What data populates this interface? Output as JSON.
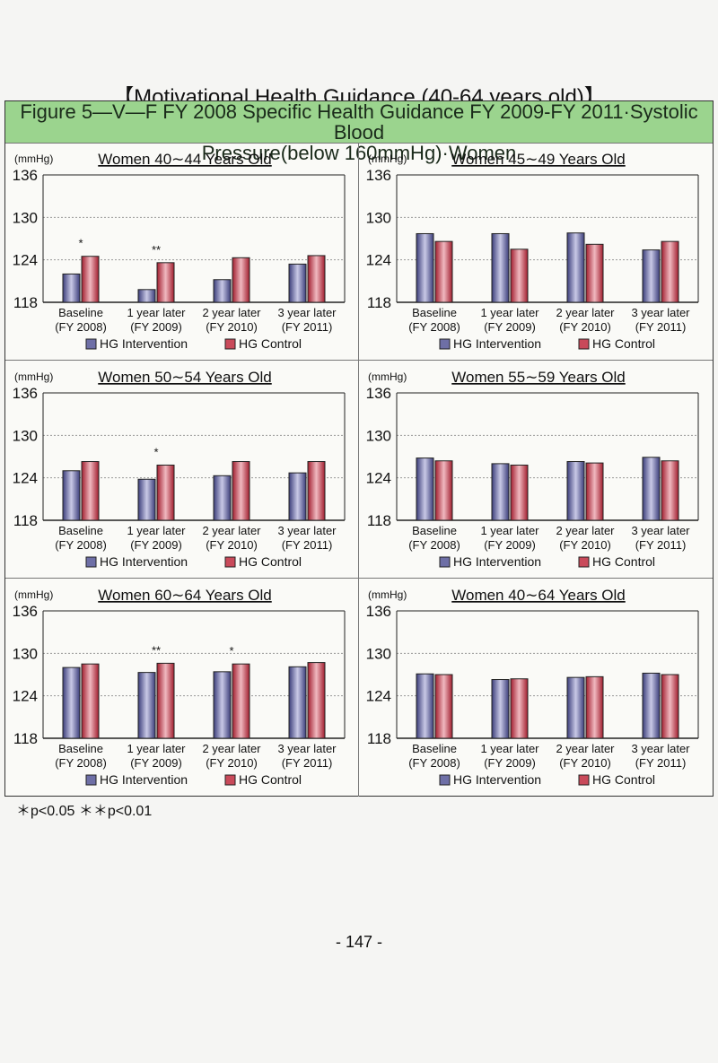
{
  "heading": "【Motivational Health Guidance (40-64 years old)】",
  "figure_title_line1": "Figure 5—V—F FY 2008 Specific Health Guidance FY 2009-FY 2011·Systolic Blood",
  "figure_title_line2": "Pressure(below 160mmHg)·Women",
  "footnote": "＊p<0.05  ＊＊p<0.01",
  "page_number": "- 147 -",
  "colors": {
    "intervention": "#6e6fa6",
    "control": "#c94a5a",
    "grid": "#999999",
    "axis": "#222222"
  },
  "legend_icon": "bar-swatch-icon",
  "chart_data": [
    {
      "type": "bar",
      "title": "Women 40∼44 Years Old",
      "ylabel": "(mmHg)",
      "ylim": [
        118,
        136
      ],
      "yticks": [
        136,
        130,
        124,
        118
      ],
      "categories": [
        "Baseline",
        "1 year later",
        "2 year later",
        "3 year later"
      ],
      "category_sublabels": [
        "(FY 2008)",
        "(FY 2009)",
        "(FY 2010)",
        "(FY 2011)"
      ],
      "significance": [
        "*",
        "**",
        "",
        ""
      ],
      "series": [
        {
          "name": "HG Intervention",
          "values": [
            122.0,
            119.8,
            121.2,
            123.4
          ]
        },
        {
          "name": "HG Control",
          "values": [
            124.5,
            123.6,
            124.3,
            124.6
          ]
        }
      ]
    },
    {
      "type": "bar",
      "title": "Women 45∼49 Years Old",
      "ylabel": "(mmHg)",
      "ylim": [
        118,
        136
      ],
      "yticks": [
        136,
        130,
        124,
        118
      ],
      "categories": [
        "Baseline",
        "1 year later",
        "2 year later",
        "3 year later"
      ],
      "category_sublabels": [
        "(FY 2008)",
        "(FY 2009)",
        "(FY 2010)",
        "(FY 2011)"
      ],
      "significance": [
        "",
        "",
        "",
        ""
      ],
      "series": [
        {
          "name": "HG Intervention",
          "values": [
            127.7,
            127.7,
            127.8,
            125.4
          ]
        },
        {
          "name": "HG Control",
          "values": [
            126.6,
            125.5,
            126.2,
            126.6
          ]
        }
      ]
    },
    {
      "type": "bar",
      "title": "Women 50∼54 Years Old",
      "ylabel": "(mmHg)",
      "ylim": [
        118,
        136
      ],
      "yticks": [
        136,
        130,
        124,
        118
      ],
      "categories": [
        "Baseline",
        "1 year later",
        "2 year later",
        "3 year later"
      ],
      "category_sublabels": [
        "(FY 2008)",
        "(FY 2009)",
        "(FY 2010)",
        "(FY 2011)"
      ],
      "significance": [
        "",
        "*",
        "",
        ""
      ],
      "series": [
        {
          "name": "HG Intervention",
          "values": [
            125.0,
            123.8,
            124.3,
            124.7
          ]
        },
        {
          "name": "HG Control",
          "values": [
            126.3,
            125.8,
            126.3,
            126.3
          ]
        }
      ]
    },
    {
      "type": "bar",
      "title": "Women 55∼59 Years Old",
      "ylabel": "(mmHg)",
      "ylim": [
        118,
        136
      ],
      "yticks": [
        136,
        130,
        124,
        118
      ],
      "categories": [
        "Baseline",
        "1 year later",
        "2 year later",
        "3 year later"
      ],
      "category_sublabels": [
        "(FY 2008)",
        "(FY 2009)",
        "(FY 2010)",
        "(FY 2011)"
      ],
      "significance": [
        "",
        "",
        "",
        ""
      ],
      "series": [
        {
          "name": "HG Intervention",
          "values": [
            126.8,
            126.0,
            126.3,
            126.9
          ]
        },
        {
          "name": "HG Control",
          "values": [
            126.4,
            125.8,
            126.1,
            126.4
          ]
        }
      ]
    },
    {
      "type": "bar",
      "title": "Women 60∼64 Years Old",
      "ylabel": "(mmHg)",
      "ylim": [
        118,
        136
      ],
      "yticks": [
        136,
        130,
        124,
        118
      ],
      "categories": [
        "Baseline",
        "1 year later",
        "2 year later",
        "3 year later"
      ],
      "category_sublabels": [
        "(FY 2008)",
        "(FY 2009)",
        "(FY 2010)",
        "(FY 2011)"
      ],
      "significance": [
        "",
        "**",
        "*",
        ""
      ],
      "series": [
        {
          "name": "HG Intervention",
          "values": [
            128.0,
            127.3,
            127.4,
            128.1
          ]
        },
        {
          "name": "HG Control",
          "values": [
            128.5,
            128.6,
            128.5,
            128.7
          ]
        }
      ]
    },
    {
      "type": "bar",
      "title": "Women 40∼64 Years Old",
      "ylabel": "(mmHg)",
      "ylim": [
        118,
        136
      ],
      "yticks": [
        136,
        130,
        124,
        118
      ],
      "categories": [
        "Baseline",
        "1 year later",
        "2 year later",
        "3 year later"
      ],
      "category_sublabels": [
        "(FY 2008)",
        "(FY 2009)",
        "(FY 2010)",
        "(FY 2011)"
      ],
      "significance": [
        "",
        "",
        "",
        ""
      ],
      "series": [
        {
          "name": "HG Intervention",
          "values": [
            127.1,
            126.3,
            126.6,
            127.2
          ]
        },
        {
          "name": "HG Control",
          "values": [
            127.0,
            126.4,
            126.7,
            127.0
          ]
        }
      ]
    }
  ]
}
